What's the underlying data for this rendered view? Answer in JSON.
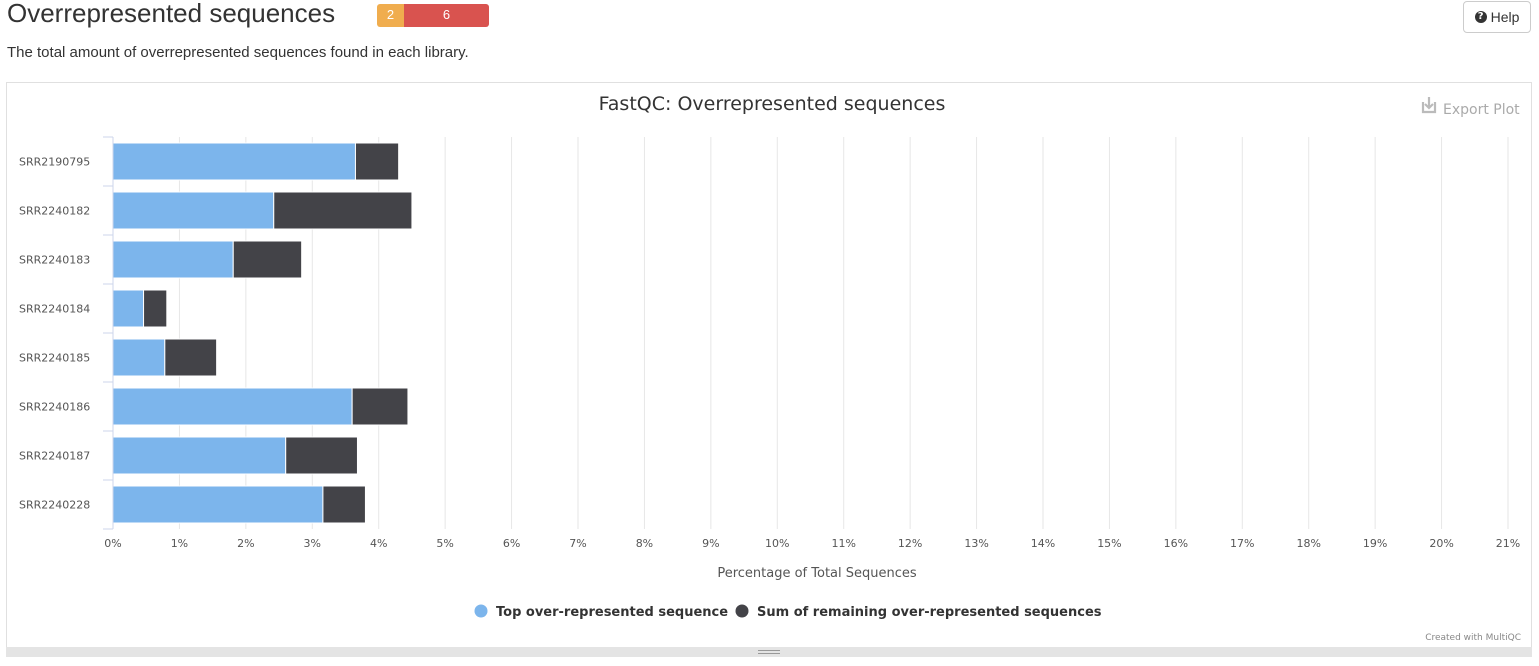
{
  "section": {
    "title": "Overrepresented sequences",
    "status": {
      "warn_count": "2",
      "fail_count": "6",
      "warn_color": "#f0ad4e",
      "fail_color": "#d9534f"
    },
    "help_label": "Help",
    "description": "The total amount of overrepresented sequences found in each library."
  },
  "plot": {
    "export_label": "Export Plot",
    "credit": "Created with MultiQC"
  },
  "chart_data": {
    "type": "bar",
    "orientation": "horizontal",
    "stacked": true,
    "title": "FastQC: Overrepresented sequences",
    "xlabel": "Percentage of Total Sequences",
    "ylabel": "",
    "xlim": [
      0,
      21
    ],
    "x_ticks": [
      "0%",
      "1%",
      "2%",
      "3%",
      "4%",
      "5%",
      "6%",
      "7%",
      "8%",
      "9%",
      "10%",
      "11%",
      "12%",
      "13%",
      "14%",
      "15%",
      "16%",
      "17%",
      "18%",
      "19%",
      "20%",
      "21%"
    ],
    "grid": true,
    "legend_position": "bottom-center",
    "categories": [
      "SRR2190795",
      "SRR2240182",
      "SRR2240183",
      "SRR2240184",
      "SRR2240185",
      "SRR2240186",
      "SRR2240187",
      "SRR2240228"
    ],
    "series": [
      {
        "name": "Top over-represented sequence",
        "color": "#7cb5ec",
        "values": [
          3.65,
          2.42,
          1.81,
          0.46,
          0.78,
          3.6,
          2.6,
          3.16
        ]
      },
      {
        "name": "Sum of remaining over-represented sequences",
        "color": "#434348",
        "values": [
          0.65,
          2.08,
          1.03,
          0.35,
          0.78,
          0.84,
          1.08,
          0.64
        ]
      }
    ]
  }
}
